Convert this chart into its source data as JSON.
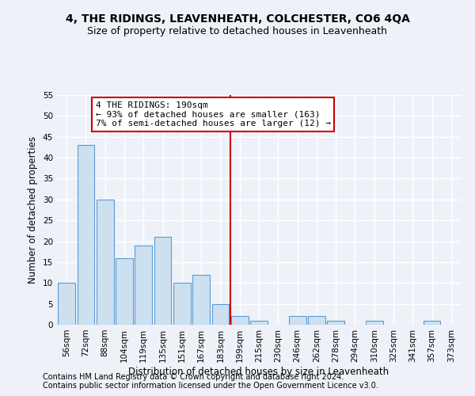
{
  "title": "4, THE RIDINGS, LEAVENHEATH, COLCHESTER, CO6 4QA",
  "subtitle": "Size of property relative to detached houses in Leavenheath",
  "xlabel": "Distribution of detached houses by size in Leavenheath",
  "ylabel": "Number of detached properties",
  "categories": [
    "56sqm",
    "72sqm",
    "88sqm",
    "104sqm",
    "119sqm",
    "135sqm",
    "151sqm",
    "167sqm",
    "183sqm",
    "199sqm",
    "215sqm",
    "230sqm",
    "246sqm",
    "262sqm",
    "278sqm",
    "294sqm",
    "310sqm",
    "325sqm",
    "341sqm",
    "357sqm",
    "373sqm"
  ],
  "values": [
    10,
    43,
    30,
    16,
    19,
    21,
    10,
    12,
    5,
    2,
    1,
    0,
    2,
    2,
    1,
    0,
    1,
    0,
    0,
    1,
    0
  ],
  "bar_color": "#cce0f0",
  "bar_edge_color": "#5b9bd5",
  "vline_x": 8.5,
  "vline_color": "#cc0000",
  "annotation_text": "4 THE RIDINGS: 190sqm\n← 93% of detached houses are smaller (163)\n7% of semi-detached houses are larger (12) →",
  "annotation_box_color": "#ffffff",
  "annotation_box_edge_color": "#cc0000",
  "ylim": [
    0,
    55
  ],
  "yticks": [
    0,
    5,
    10,
    15,
    20,
    25,
    30,
    35,
    40,
    45,
    50,
    55
  ],
  "footer1": "Contains HM Land Registry data © Crown copyright and database right 2024.",
  "footer2": "Contains public sector information licensed under the Open Government Licence v3.0.",
  "background_color": "#eef2f8",
  "grid_color": "#ffffff",
  "title_fontsize": 10,
  "subtitle_fontsize": 9,
  "axis_label_fontsize": 8.5,
  "tick_fontsize": 7.5,
  "footer_fontsize": 7,
  "annotation_fontsize": 8
}
